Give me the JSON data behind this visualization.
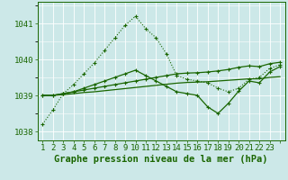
{
  "title": "Graphe pression niveau de la mer (hPa)",
  "x_values": [
    0,
    1,
    2,
    3,
    4,
    5,
    6,
    7,
    8,
    9,
    10,
    11,
    12,
    13,
    14,
    15,
    16,
    17,
    18,
    19,
    20,
    21,
    22,
    23
  ],
  "line1_dotted_peaked": [
    1038.2,
    1038.6,
    1039.05,
    1039.3,
    1039.6,
    1039.9,
    1040.25,
    1040.6,
    1040.95,
    1041.2,
    1040.85,
    1040.6,
    1040.15,
    1039.55,
    1039.45,
    1039.4,
    1039.35,
    1039.2,
    1039.1,
    1039.2,
    1039.45,
    1039.5,
    1039.75,
    1039.85
  ],
  "line2_flat_rising": [
    1039.0,
    1039.0,
    1039.05,
    1039.1,
    1039.15,
    1039.2,
    1039.25,
    1039.3,
    1039.35,
    1039.4,
    1039.45,
    1039.5,
    1039.55,
    1039.6,
    1039.62,
    1039.63,
    1039.65,
    1039.68,
    1039.72,
    1039.78,
    1039.82,
    1039.8,
    1039.88,
    1039.92
  ],
  "line3_flat": [
    1039.0,
    1039.0,
    1039.02,
    1039.05,
    1039.08,
    1039.1,
    1039.13,
    1039.16,
    1039.19,
    1039.22,
    1039.25,
    1039.28,
    1039.31,
    1039.34,
    1039.36,
    1039.37,
    1039.38,
    1039.4,
    1039.42,
    1039.44,
    1039.46,
    1039.46,
    1039.5,
    1039.52
  ],
  "line4_dip": [
    1039.0,
    1039.0,
    1039.05,
    1039.1,
    1039.2,
    1039.3,
    1039.4,
    1039.5,
    1039.6,
    1039.7,
    1039.55,
    1039.4,
    1039.25,
    1039.1,
    1039.05,
    1039.0,
    1038.68,
    1038.5,
    1038.78,
    1039.12,
    1039.4,
    1039.35,
    1039.65,
    1039.8
  ],
  "ylim": [
    1037.75,
    1041.6
  ],
  "yticks": [
    1038,
    1039,
    1040,
    1041
  ],
  "bg_color": "#cce8e8",
  "grid_color": "#ffffff",
  "line_color": "#1a6600",
  "title_fontsize": 7.5,
  "axis_fontsize": 6.5
}
